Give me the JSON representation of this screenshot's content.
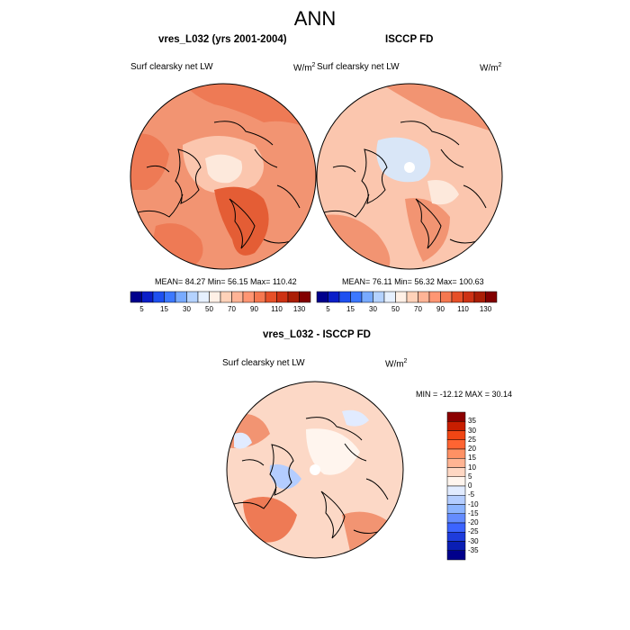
{
  "title": "ANN",
  "panels": [
    {
      "title": "vres_L032 (yrs 2001-2004)",
      "variable": "Surf clearsky net LW",
      "units": "W/m",
      "units_exp": "2",
      "stats": "MEAN=  84.27  Min=  56.15  Max=  110.42"
    },
    {
      "title": "ISCCP FD",
      "variable": "Surf clearsky net LW",
      "units": "W/m",
      "units_exp": "2",
      "stats": "MEAN=  76.11  Min=  56.32  Max=  100.63"
    }
  ],
  "diff_panel": {
    "title": "vres_L032 - ISCCP FD",
    "variable": "Surf clearsky net LW",
    "units": "W/m",
    "units_exp": "2",
    "stats": "MIN = -12.12 MAX =  30.14"
  },
  "colorbar": {
    "tick_labels": [
      "5",
      "15",
      "30",
      "50",
      "70",
      "90",
      "110",
      "130"
    ],
    "colors": [
      "#00008c",
      "#0a1ec8",
      "#1e50f0",
      "#3c78ff",
      "#78aaff",
      "#b4d2ff",
      "#e6f0ff",
      "#fff0e6",
      "#ffd2b9",
      "#ffb496",
      "#ff9673",
      "#f57850",
      "#e65028",
      "#cd3214",
      "#aa1e05",
      "#820000"
    ]
  },
  "diff_colorbar": {
    "tick_labels": [
      "35",
      "30",
      "25",
      "20",
      "15",
      "10",
      "5",
      "0",
      "-5",
      "-10",
      "-15",
      "-20",
      "-25",
      "-30",
      "-35"
    ],
    "colors": [
      "#8c0000",
      "#c81e00",
      "#f04614",
      "#ff6432",
      "#ff9164",
      "#ffb493",
      "#ffd7c3",
      "#fff5ee",
      "#e1ebff",
      "#b4cdff",
      "#8cb4ff",
      "#648cff",
      "#3c64ff",
      "#1e3cdc",
      "#0a1eb4",
      "#00008c"
    ]
  },
  "map_colors": {
    "panel1_base": "#f29472",
    "panel2_base": "#fbc6ae",
    "diff_base": "#fcd8c6",
    "pole_blue": "#d9e6f7",
    "warm_orange": "#ee7a55",
    "deep_orange": "#e45d35",
    "cream": "#fde9dc"
  }
}
